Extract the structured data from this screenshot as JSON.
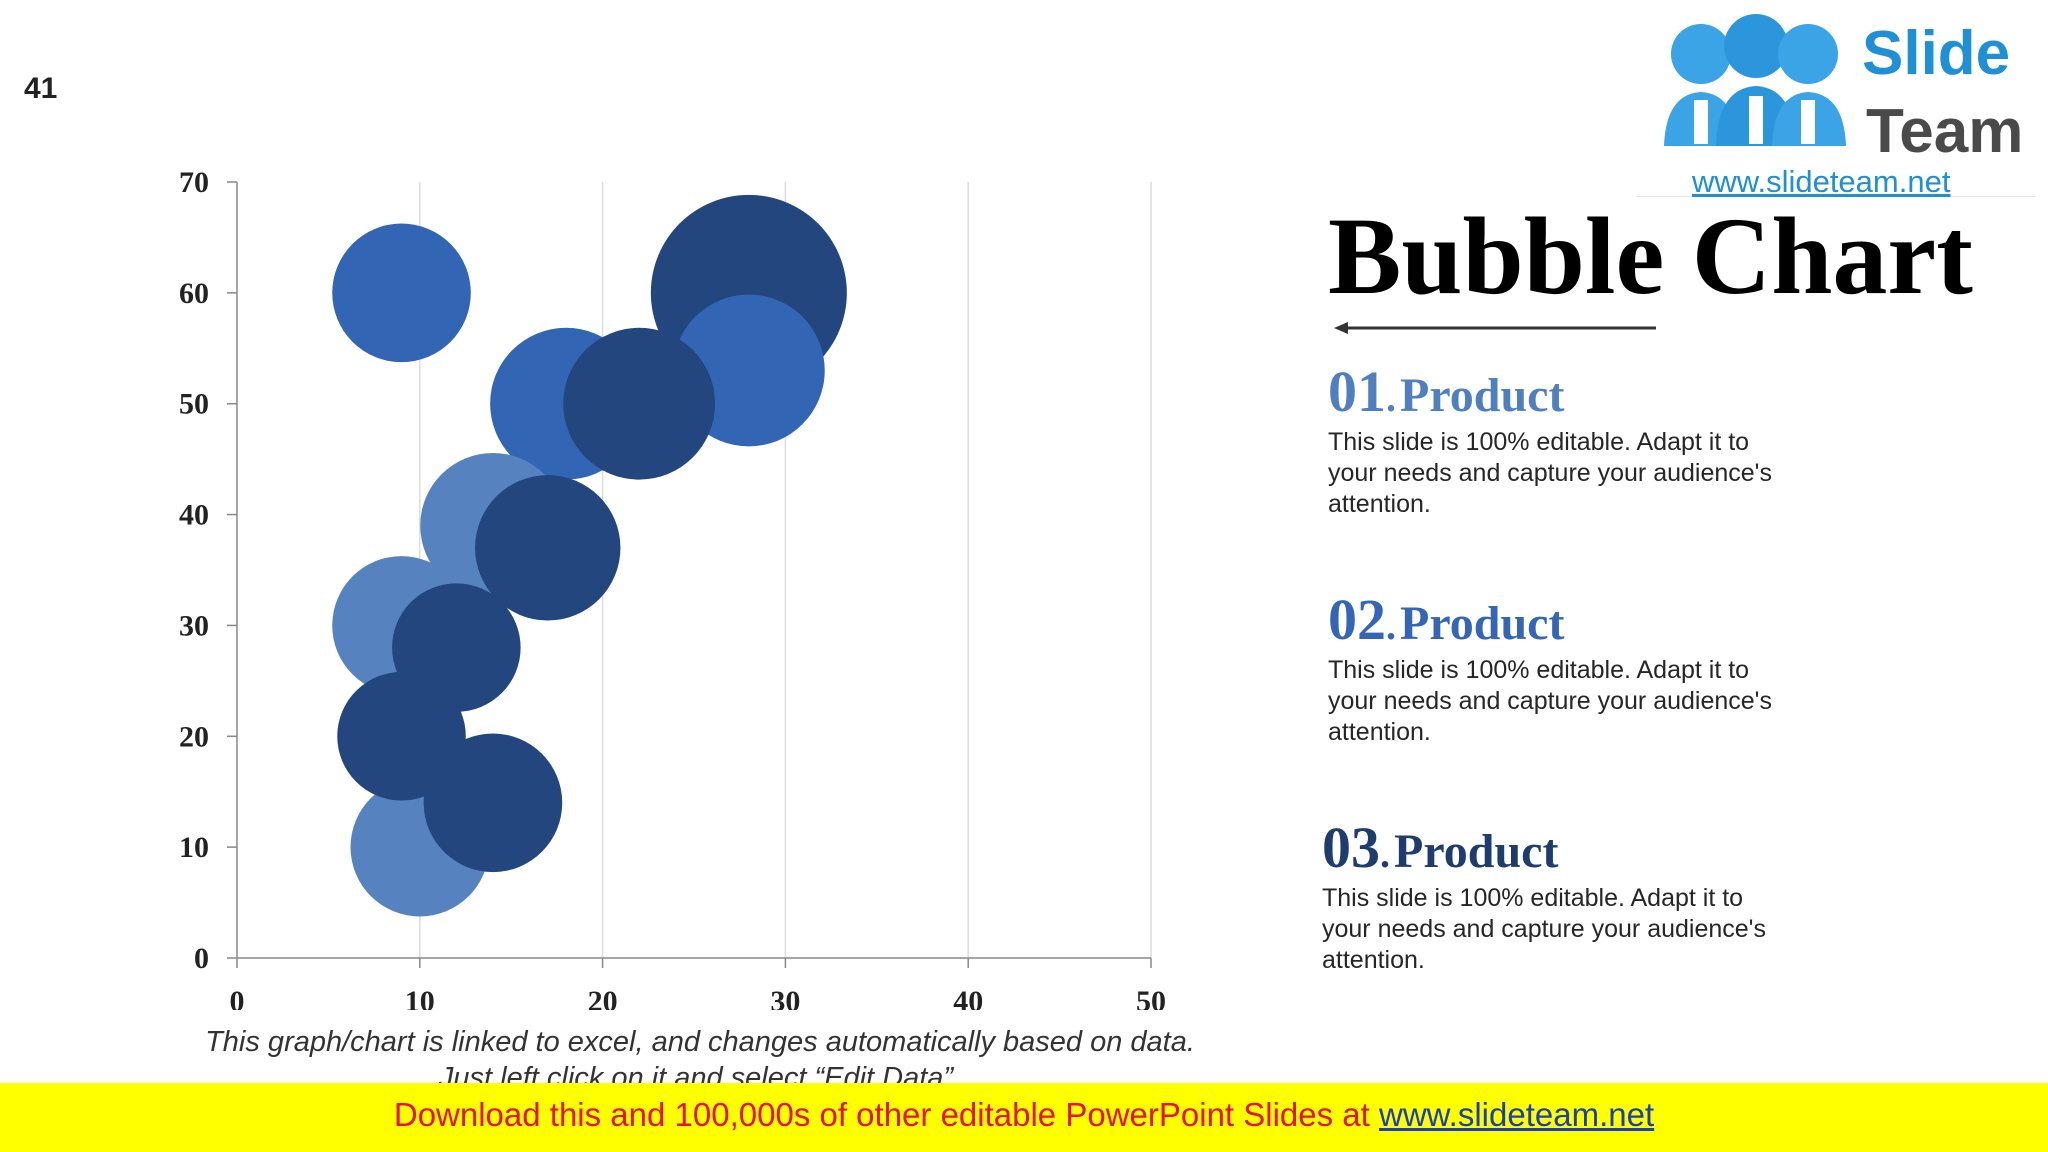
{
  "slide_number": "41",
  "logo": {
    "word1": "Slide",
    "word2": "Team",
    "url": "www.slideteam.net"
  },
  "title": "Bubble Chart",
  "items": [
    {
      "number": "01",
      "dot": ".",
      "label": "Product",
      "color": "#4f7fbf",
      "description": "This slide is 100% editable. Adapt it to your needs and capture your audience's attention."
    },
    {
      "number": "02",
      "dot": ".",
      "label": "Product",
      "color": "#3466b5",
      "description": "This slide is 100% editable. Adapt it to your needs and capture your audience's attention."
    },
    {
      "number": "03",
      "dot": ".",
      "label": "Product",
      "color": "#1f3c6e",
      "description": "This slide is 100% editable. Adapt it to your needs and capture your audience's attention."
    }
  ],
  "chart_note": "This graph/chart is linked to excel, and changes automatically based on data. Just left click on it and select “Edit Data”.",
  "footer": {
    "text": "Download this and 100,000s of other editable PowerPoint Slides at ",
    "link": "www.slideteam.net"
  },
  "colors": {
    "light_blue": "#5683c0",
    "mid_blue": "#3266b5",
    "dark_blue": "#22467d",
    "footer_bg": "#ffff00",
    "footer_text": "#e8112d"
  },
  "chart_data": {
    "type": "scatter",
    "subtype": "bubble",
    "xlim": [
      0,
      50
    ],
    "ylim": [
      0,
      70
    ],
    "x_ticks": [
      "0",
      "10",
      "20",
      "30",
      "40",
      "50"
    ],
    "y_ticks": [
      "0",
      "10",
      "20",
      "30",
      "40",
      "50",
      "60",
      "70"
    ],
    "grid": "vertical",
    "legend": "none",
    "series": [
      {
        "color": "#5683c0",
        "points": [
          {
            "x": 10,
            "y": 10,
            "size": 5
          },
          {
            "x": 9,
            "y": 30,
            "size": 5
          },
          {
            "x": 14,
            "y": 39,
            "size": 5.5
          }
        ]
      },
      {
        "color": "#3266b5",
        "points": [
          {
            "x": 9,
            "y": 60,
            "size": 5
          },
          {
            "x": 18,
            "y": 50,
            "size": 6
          },
          {
            "x": 28,
            "y": 53,
            "size": 6
          }
        ]
      },
      {
        "color": "#22467d",
        "points": [
          {
            "x": 28,
            "y": 60,
            "size": 10
          },
          {
            "x": 22,
            "y": 50,
            "size": 6
          },
          {
            "x": 17,
            "y": 37,
            "size": 5.5
          },
          {
            "x": 12,
            "y": 28,
            "size": 4.3
          },
          {
            "x": 9,
            "y": 20,
            "size": 4.3
          },
          {
            "x": 14,
            "y": 14,
            "size": 5
          }
        ]
      }
    ]
  }
}
